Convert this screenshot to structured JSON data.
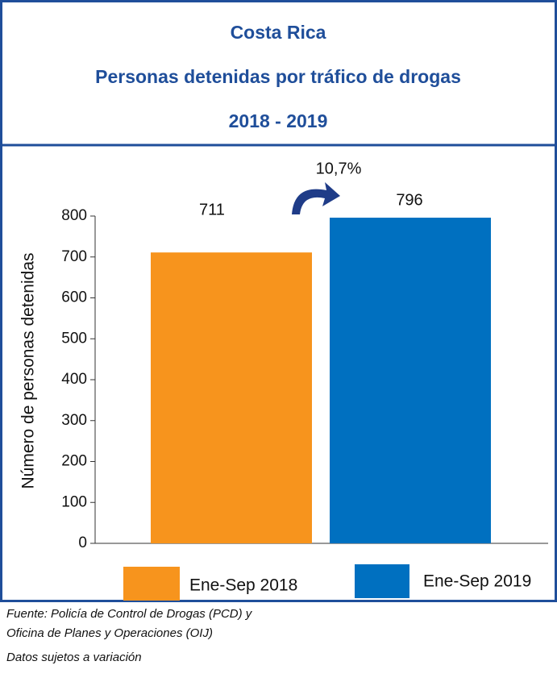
{
  "chart_data": {
    "type": "bar",
    "title": [
      "Costa Rica",
      "Personas detenidas  por tráfico de drogas",
      "2018 - 2019"
    ],
    "ylabel": "Número de personas detenidas",
    "annotation": "10,7%",
    "series": [
      {
        "name": "Ene-Sep 2018",
        "color": "#f7941d",
        "values": [
          711
        ]
      },
      {
        "name": "Ene-Sep 2019",
        "color": "#0070c0",
        "values": [
          796
        ]
      }
    ],
    "ylim": [
      0,
      800
    ],
    "yticks": [
      0,
      100,
      200,
      300,
      400,
      500,
      600,
      700,
      800
    ],
    "notes": [
      "Fuente: Policía de Control de Drogas (PCD) y",
      "Oficina de Planes y Operaciones (OIJ)",
      "Datos sujetos a variación"
    ]
  }
}
